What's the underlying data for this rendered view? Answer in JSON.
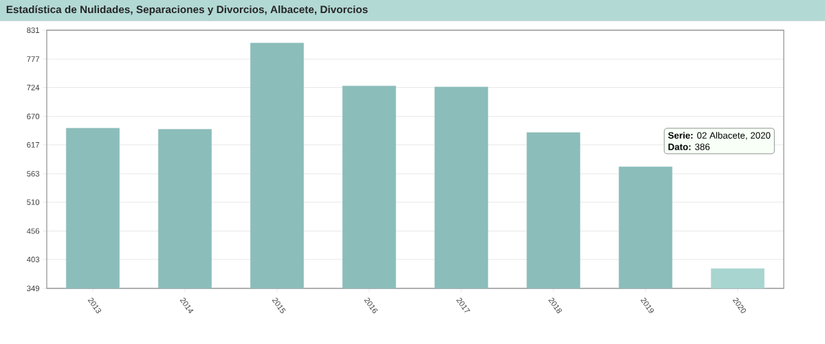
{
  "chart_data": {
    "type": "bar",
    "title": "Estadística de Nulidades, Separaciones y Divorcios, Albacete, Divorcios",
    "categories": [
      "2013",
      "2014",
      "2015",
      "2016",
      "2017",
      "2018",
      "2019",
      "2020"
    ],
    "values": [
      648,
      646,
      807,
      727,
      725,
      640,
      576,
      386
    ],
    "colors": [
      "#8bbdba",
      "#8bbdba",
      "#8bbdba",
      "#8bbdba",
      "#8bbdba",
      "#8bbdba",
      "#8bbdba",
      "#a8d5d0"
    ],
    "ylim": [
      349,
      831
    ],
    "yticks": [
      349,
      403,
      456,
      510,
      563,
      617,
      670,
      724,
      777,
      831
    ],
    "grid": "y",
    "annotations": [
      "**Serie:** 02 Albacete, 2020",
      "**Dato:** 386"
    ]
  }
}
